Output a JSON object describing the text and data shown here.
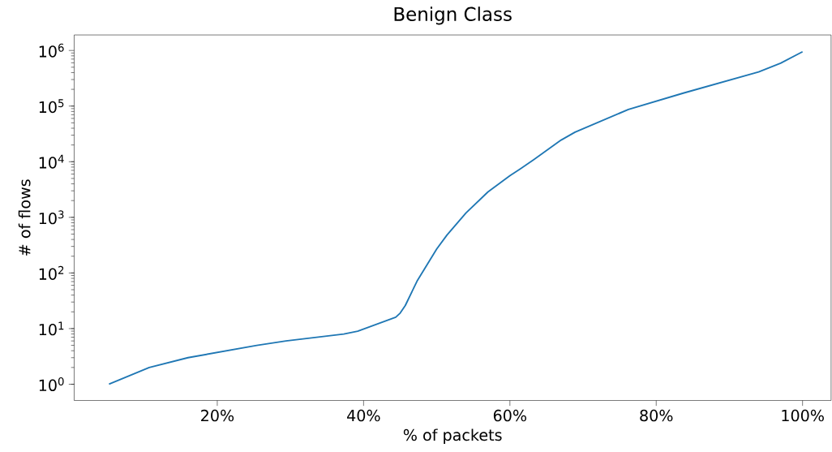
{
  "chart_data": {
    "type": "line",
    "title": "Benign Class",
    "xlabel": "% of packets",
    "ylabel": "# of flows",
    "log": "y",
    "x": [
      5.2,
      10.7,
      16.0,
      25.4,
      29.4,
      37.3,
      39.2,
      44.4,
      45.0,
      45.7,
      47.3,
      50.0,
      51.4,
      54.0,
      57.0,
      60.0,
      61.4,
      63.3,
      67.0,
      68.9,
      76.2,
      83.7,
      94.0,
      97.0,
      100.0
    ],
    "series": [
      {
        "color": "#1f77b4",
        "values": [
          1,
          2,
          3,
          5,
          6,
          8,
          9,
          16,
          19,
          26,
          71,
          270,
          480,
          1200,
          2860,
          5600,
          7400,
          11000,
          24500,
          34000,
          87000,
          171000,
          410000,
          590000,
          950000
        ]
      }
    ],
    "xlim": [
      0.44,
      103.9
    ],
    "ylim": [
      0.51,
      1900000
    ],
    "xticks": [
      {
        "value": 20,
        "label": "20%"
      },
      {
        "value": 40,
        "label": "40%"
      },
      {
        "value": 60,
        "label": "60%"
      },
      {
        "value": 80,
        "label": "80%"
      },
      {
        "value": 100,
        "label": "100%"
      }
    ],
    "yticks": [
      {
        "value": 1,
        "label": "10$^{0}$"
      },
      {
        "value": 10,
        "label": "10$^{1}$"
      },
      {
        "value": 100,
        "label": "10$^{2}$"
      },
      {
        "value": 1000,
        "label": "10$^{3}$"
      },
      {
        "value": 10000,
        "label": "10$^{4}$"
      },
      {
        "value": 100000,
        "label": "10$^{5}$"
      },
      {
        "value": 1000000,
        "label": "10$^{6}$"
      }
    ],
    "grid": false,
    "marker": "none",
    "line_style": "solid"
  }
}
